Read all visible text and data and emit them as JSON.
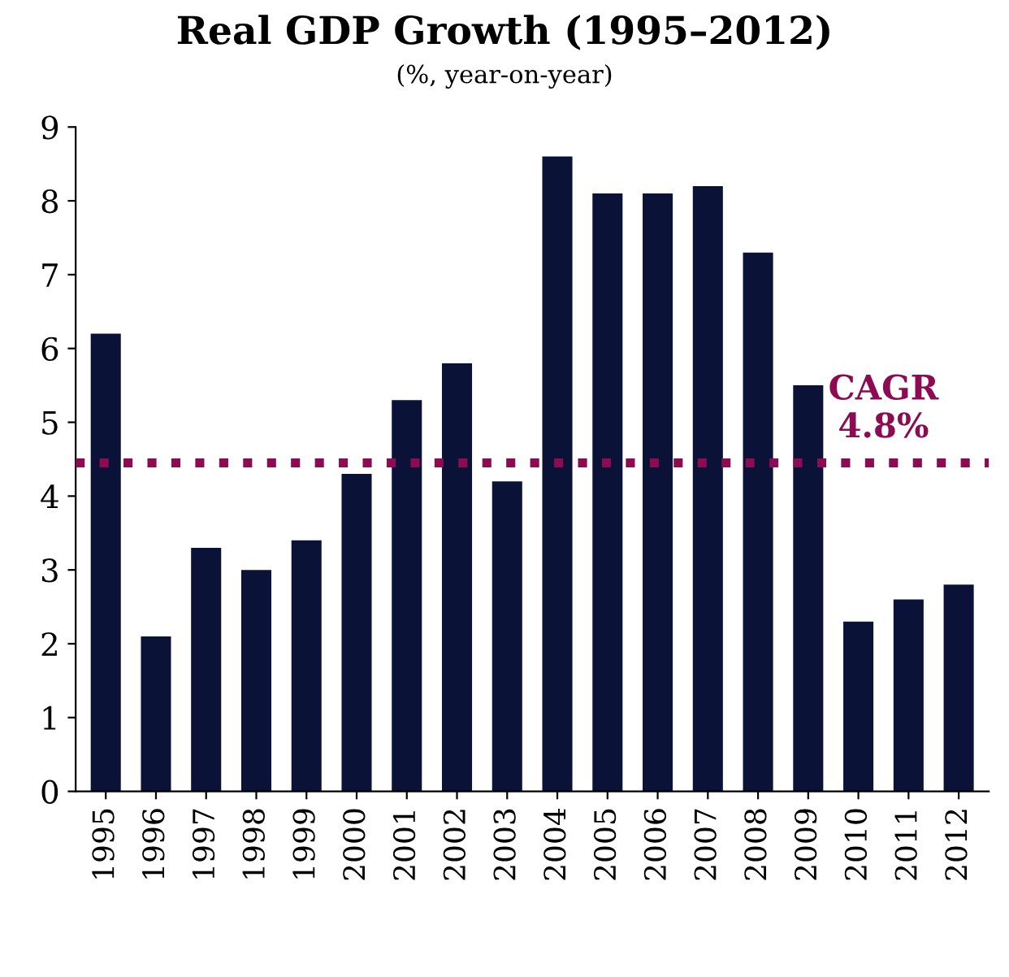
{
  "chart_data": {
    "type": "bar",
    "title": "Real GDP Growth (1995–2012)",
    "subtitle": "(%, year-on-year)",
    "categories": [
      "1995",
      "1996",
      "1997",
      "1998",
      "1999",
      "2000",
      "2001",
      "2002",
      "2003",
      "2004",
      "2005",
      "2006",
      "2007",
      "2008",
      "2009",
      "2010",
      "2011",
      "2012"
    ],
    "values": [
      6.2,
      2.1,
      3.3,
      3.0,
      3.4,
      4.3,
      5.3,
      5.8,
      4.2,
      8.6,
      8.1,
      8.1,
      8.2,
      7.3,
      5.5,
      2.3,
      2.6,
      2.8
    ],
    "color": "#0b1238",
    "ylim": [
      0,
      9
    ],
    "yticks": [
      0,
      1,
      2,
      3,
      4,
      5,
      6,
      7,
      8,
      9
    ],
    "grid": false,
    "legend": false,
    "ref_lines": [
      {
        "axis": "y",
        "value": 4.45,
        "label": "CAGR\n4.8%",
        "color": "#8c0b52",
        "line_style": "dotted"
      }
    ]
  }
}
